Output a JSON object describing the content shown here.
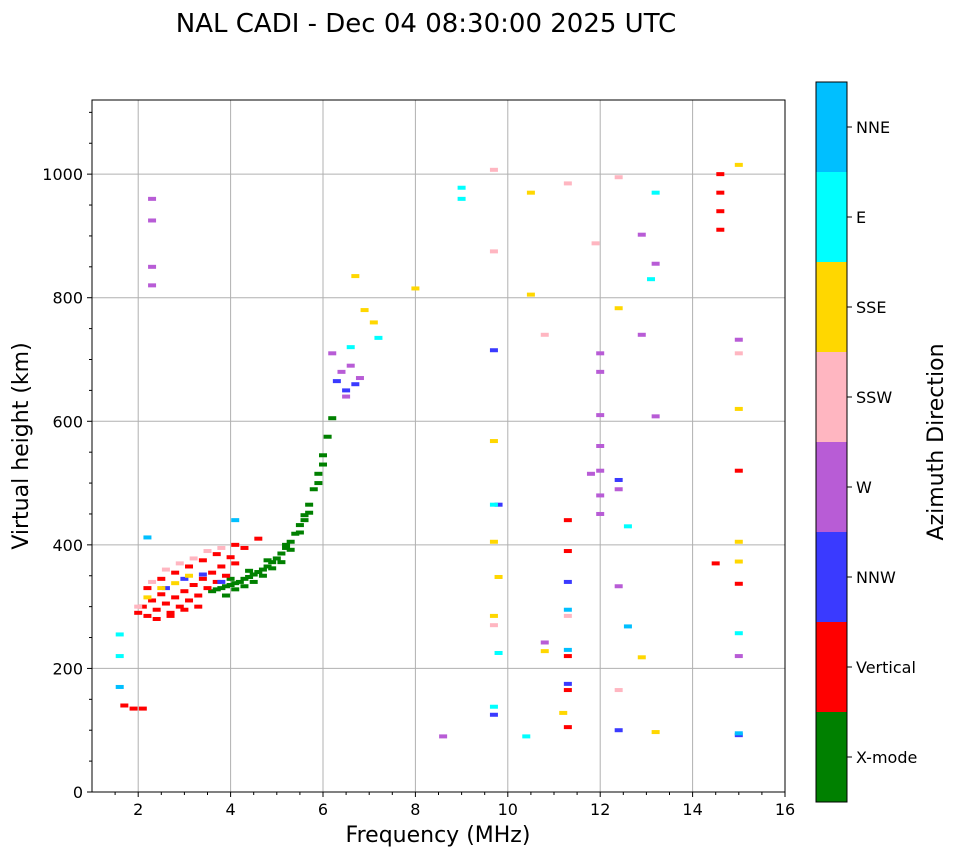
{
  "chart_data": {
    "type": "scatter",
    "title": "NAL CADI - Dec 04 08:30:00 2025 UTC",
    "xlabel": "Frequency (MHz)",
    "ylabel": "Virtual height (km)",
    "xlim": [
      1,
      16
    ],
    "ylim": [
      0,
      1120
    ],
    "xticks": [
      2,
      4,
      6,
      8,
      10,
      12,
      14,
      16
    ],
    "yticks": [
      0,
      200,
      400,
      600,
      800,
      1000
    ],
    "grid": true,
    "colorbar": {
      "title": "Azimuth Direction",
      "categories": [
        {
          "name": "X-mode",
          "color": "#008000"
        },
        {
          "name": "Vertical",
          "color": "#ff0000"
        },
        {
          "name": "NNW",
          "color": "#3a3aff"
        },
        {
          "name": "W",
          "color": "#b85cd6"
        },
        {
          "name": "SSW",
          "color": "#ffb6c1"
        },
        {
          "name": "SSE",
          "color": "#ffd700"
        },
        {
          "name": "E",
          "color": "#00ffff"
        },
        {
          "name": "NNE",
          "color": "#00bfff"
        }
      ]
    },
    "series": [
      {
        "name": "X-mode",
        "points": [
          [
            3.6,
            325
          ],
          [
            3.7,
            328
          ],
          [
            3.8,
            330
          ],
          [
            3.9,
            333
          ],
          [
            4.0,
            335
          ],
          [
            4.1,
            338
          ],
          [
            4.2,
            340
          ],
          [
            4.3,
            345
          ],
          [
            4.4,
            348
          ],
          [
            4.5,
            352
          ],
          [
            4.6,
            356
          ],
          [
            4.7,
            360
          ],
          [
            4.8,
            365
          ],
          [
            4.9,
            372
          ],
          [
            5.0,
            378
          ],
          [
            5.1,
            386
          ],
          [
            5.2,
            395
          ],
          [
            5.3,
            405
          ],
          [
            5.4,
            418
          ],
          [
            5.5,
            432
          ],
          [
            5.6,
            448
          ],
          [
            5.7,
            465
          ],
          [
            5.8,
            490
          ],
          [
            5.9,
            515
          ],
          [
            6.0,
            545
          ],
          [
            6.1,
            575
          ],
          [
            6.2,
            605
          ],
          [
            3.9,
            318
          ],
          [
            4.1,
            328
          ],
          [
            4.3,
            333
          ],
          [
            4.5,
            340
          ],
          [
            4.7,
            350
          ],
          [
            4.9,
            362
          ],
          [
            5.1,
            372
          ],
          [
            5.3,
            392
          ],
          [
            5.5,
            420
          ],
          [
            5.7,
            452
          ],
          [
            5.9,
            500
          ],
          [
            4.0,
            345
          ],
          [
            4.4,
            358
          ],
          [
            4.8,
            375
          ],
          [
            5.2,
            400
          ],
          [
            5.6,
            440
          ],
          [
            6.0,
            530
          ]
        ]
      },
      {
        "name": "Vertical",
        "points": [
          [
            2.0,
            290
          ],
          [
            2.1,
            300
          ],
          [
            2.2,
            285
          ],
          [
            2.3,
            310
          ],
          [
            2.4,
            295
          ],
          [
            2.5,
            320
          ],
          [
            2.6,
            305
          ],
          [
            2.7,
            290
          ],
          [
            2.8,
            315
          ],
          [
            2.9,
            300
          ],
          [
            3.0,
            325
          ],
          [
            3.1,
            310
          ],
          [
            3.2,
            335
          ],
          [
            3.3,
            318
          ],
          [
            3.4,
            345
          ],
          [
            3.5,
            330
          ],
          [
            3.6,
            355
          ],
          [
            3.7,
            340
          ],
          [
            3.8,
            365
          ],
          [
            3.9,
            350
          ],
          [
            4.0,
            380
          ],
          [
            4.1,
            370
          ],
          [
            2.2,
            330
          ],
          [
            2.5,
            345
          ],
          [
            2.8,
            355
          ],
          [
            3.1,
            365
          ],
          [
            3.4,
            375
          ],
          [
            3.7,
            385
          ],
          [
            4.1,
            400
          ],
          [
            4.3,
            395
          ],
          [
            4.6,
            410
          ],
          [
            2.4,
            280
          ],
          [
            2.7,
            285
          ],
          [
            3.0,
            295
          ],
          [
            3.3,
            300
          ],
          [
            1.7,
            140
          ],
          [
            1.9,
            135
          ],
          [
            2.1,
            135
          ],
          [
            11.3,
            440
          ],
          [
            11.3,
            390
          ],
          [
            11.3,
            220
          ],
          [
            11.3,
            165
          ],
          [
            11.3,
            105
          ],
          [
            14.5,
            370
          ],
          [
            14.6,
            1000
          ],
          [
            14.6,
            970
          ],
          [
            14.6,
            940
          ],
          [
            14.6,
            910
          ],
          [
            15.0,
            520
          ],
          [
            15.0,
            337
          ]
        ]
      },
      {
        "name": "NNW",
        "points": [
          [
            2.6,
            330
          ],
          [
            3.0,
            345
          ],
          [
            3.4,
            352
          ],
          [
            3.8,
            340
          ],
          [
            6.3,
            665
          ],
          [
            6.5,
            650
          ],
          [
            6.7,
            660
          ],
          [
            9.7,
            715
          ],
          [
            9.8,
            465
          ],
          [
            9.7,
            125
          ],
          [
            11.3,
            340
          ],
          [
            11.3,
            175
          ],
          [
            12.4,
            505
          ],
          [
            12.4,
            100
          ],
          [
            15.0,
            92
          ]
        ]
      },
      {
        "name": "W",
        "points": [
          [
            2.3,
            960
          ],
          [
            2.3,
            925
          ],
          [
            2.3,
            850
          ],
          [
            2.3,
            820
          ],
          [
            6.4,
            680
          ],
          [
            6.6,
            690
          ],
          [
            6.8,
            670
          ],
          [
            6.5,
            640
          ],
          [
            6.2,
            710
          ],
          [
            12.0,
            710
          ],
          [
            12.0,
            680
          ],
          [
            12.0,
            610
          ],
          [
            12.0,
            560
          ],
          [
            12.0,
            520
          ],
          [
            12.0,
            480
          ],
          [
            12.0,
            450
          ],
          [
            12.4,
            490
          ],
          [
            12.4,
            333
          ],
          [
            12.9,
            902
          ],
          [
            12.9,
            740
          ],
          [
            13.2,
            855
          ],
          [
            13.2,
            608
          ],
          [
            10.8,
            242
          ],
          [
            11.8,
            515
          ],
          [
            8.6,
            90
          ],
          [
            15.0,
            220
          ],
          [
            15.0,
            732
          ]
        ]
      },
      {
        "name": "SSW",
        "points": [
          [
            2.0,
            300
          ],
          [
            2.3,
            340
          ],
          [
            2.6,
            360
          ],
          [
            2.9,
            370
          ],
          [
            3.2,
            378
          ],
          [
            3.5,
            390
          ],
          [
            3.8,
            395
          ],
          [
            9.7,
            1007
          ],
          [
            9.7,
            875
          ],
          [
            9.7,
            270
          ],
          [
            10.8,
            740
          ],
          [
            11.3,
            985
          ],
          [
            11.3,
            285
          ],
          [
            11.9,
            888
          ],
          [
            12.4,
            165
          ],
          [
            12.4,
            995
          ],
          [
            15.0,
            710
          ]
        ]
      },
      {
        "name": "SSE",
        "points": [
          [
            2.2,
            315
          ],
          [
            2.5,
            330
          ],
          [
            2.8,
            338
          ],
          [
            3.1,
            350
          ],
          [
            6.9,
            780
          ],
          [
            7.1,
            760
          ],
          [
            6.7,
            835
          ],
          [
            8.0,
            815
          ],
          [
            9.7,
            568
          ],
          [
            9.7,
            405
          ],
          [
            9.8,
            348
          ],
          [
            9.7,
            285
          ],
          [
            10.5,
            805
          ],
          [
            10.5,
            970
          ],
          [
            10.8,
            228
          ],
          [
            11.2,
            128
          ],
          [
            12.4,
            783
          ],
          [
            12.9,
            218
          ],
          [
            13.2,
            97
          ],
          [
            15.0,
            405
          ],
          [
            15.0,
            373
          ],
          [
            15.0,
            620
          ],
          [
            15.0,
            1015
          ]
        ]
      },
      {
        "name": "E",
        "points": [
          [
            1.6,
            255
          ],
          [
            1.6,
            220
          ],
          [
            9.0,
            978
          ],
          [
            9.0,
            960
          ],
          [
            9.7,
            465
          ],
          [
            9.7,
            138
          ],
          [
            9.8,
            225
          ],
          [
            10.4,
            90
          ],
          [
            12.6,
            430
          ],
          [
            13.2,
            970
          ],
          [
            13.1,
            830
          ],
          [
            15.0,
            257
          ],
          [
            6.6,
            720
          ],
          [
            7.2,
            735
          ]
        ]
      },
      {
        "name": "NNE",
        "points": [
          [
            1.6,
            170
          ],
          [
            2.2,
            412
          ],
          [
            4.1,
            440
          ],
          [
            11.3,
            295
          ],
          [
            11.3,
            230
          ],
          [
            12.6,
            268
          ],
          [
            15.0,
            95
          ]
        ]
      }
    ]
  }
}
